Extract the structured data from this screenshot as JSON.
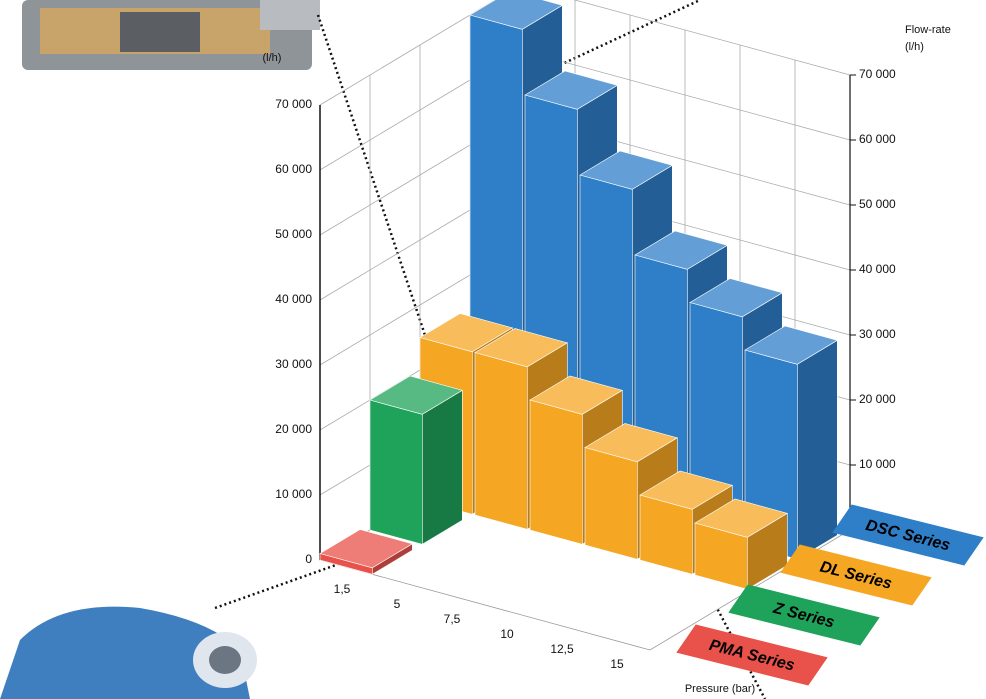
{
  "chart_data": {
    "type": "bar3d",
    "y_label": "(l/h)",
    "y2_title": "Flow-rate",
    "y2_label": "(l/h)",
    "x_label": "Pressure (bar)",
    "categories": [
      "1,5",
      "5",
      "7,5",
      "10",
      "12,5",
      "15"
    ],
    "series": [
      {
        "name": "PMA Series",
        "color": "#e8524a",
        "values": [
          1000,
          null,
          null,
          null,
          null,
          null
        ]
      },
      {
        "name": "Z Series",
        "color": "#1fa35a",
        "values": [
          20000,
          null,
          null,
          null,
          null,
          null
        ]
      },
      {
        "name": "DL Series",
        "color": "#f5a623",
        "values": [
          25000,
          25000,
          20000,
          15000,
          10000,
          8000
        ]
      },
      {
        "name": "DSC Series",
        "color": "#2f7fc8",
        "values": [
          70000,
          60000,
          50000,
          40000,
          35000,
          30000
        ]
      }
    ],
    "ylim": [
      0,
      70000
    ],
    "yticks": [
      0,
      {
        "value": 10000,
        "label": "10 000"
      },
      {
        "value": 20000,
        "label": "20 000"
      },
      {
        "value": 30000,
        "label": "30 000"
      },
      {
        "value": 40000,
        "label": "40 000"
      },
      {
        "value": 50000,
        "label": "50 000"
      },
      {
        "value": 60000,
        "label": "60 000"
      },
      {
        "value": 70000,
        "label": "70 000"
      }
    ],
    "y2lim": [
      0,
      70000
    ],
    "y2ticks": [
      0,
      {
        "value": 10000,
        "label": "10 000"
      },
      {
        "value": 20000,
        "label": "20 000"
      },
      {
        "value": 30000,
        "label": "30 000"
      },
      {
        "value": 40000,
        "label": "40 000"
      },
      {
        "value": 50000,
        "label": "50 000"
      },
      {
        "value": 60000,
        "label": "60 000"
      },
      {
        "value": 70000,
        "label": "70 000"
      }
    ],
    "grid": true
  }
}
